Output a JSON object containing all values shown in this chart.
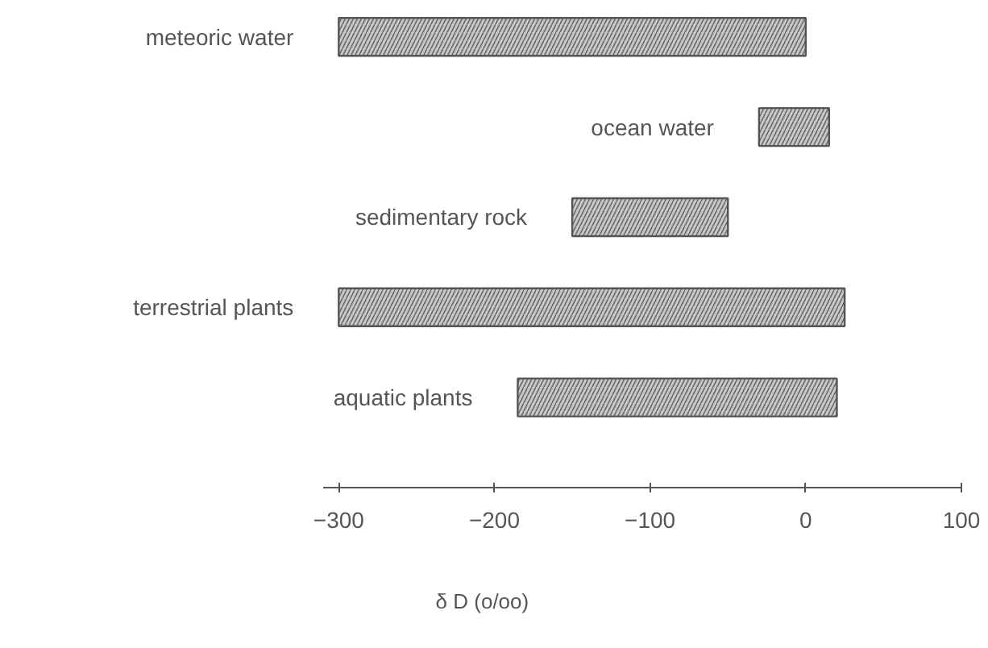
{
  "chart_data": {
    "type": "bar",
    "orientation": "horizontal",
    "categories": [
      "meteoric water",
      "ocean water",
      "sedimentary rock",
      "terrestrial plants",
      "aquatic plants"
    ],
    "base": [
      -300,
      -30,
      -150,
      -300,
      -185
    ],
    "values": [
      300,
      45,
      100,
      325,
      205
    ],
    "color": "#c8c8c8",
    "xlim": [
      -310,
      100
    ],
    "xticks": [
      -300,
      -200,
      -100,
      0,
      100
    ],
    "xlabel": "δ D  (o/oo)",
    "grid": false
  }
}
